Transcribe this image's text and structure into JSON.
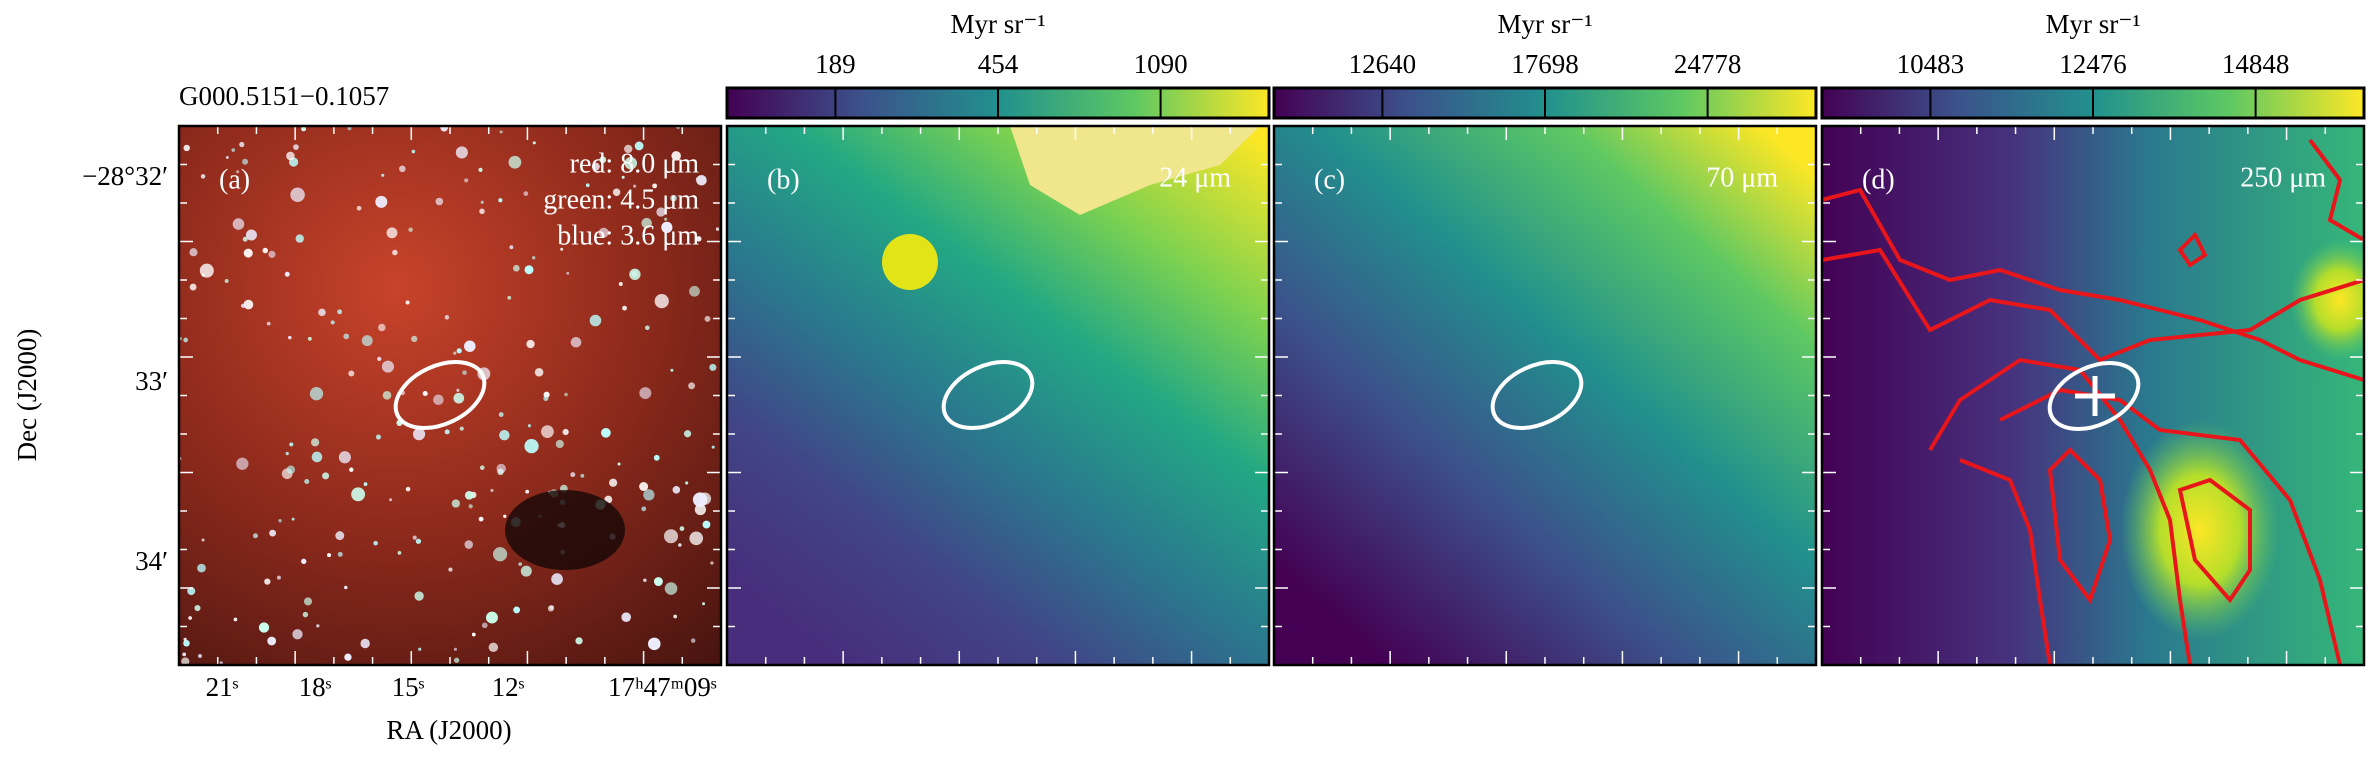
{
  "title": "G000.5151−0.1057",
  "panels": [
    {
      "label": "(a)",
      "bands": [
        "red: 8.0 μm",
        "green: 4.5 μm",
        "blue: 3.6 μm"
      ]
    },
    {
      "label": "(b)",
      "wavelength": "24 μm",
      "colorbar": {
        "unit": "Myr sr⁻¹",
        "ticks": [
          189,
          454,
          1090
        ]
      }
    },
    {
      "label": "(c)",
      "wavelength": "70 μm",
      "colorbar": {
        "unit": "Myr sr⁻¹",
        "ticks": [
          12640,
          17698,
          24778
        ]
      }
    },
    {
      "label": "(d)",
      "wavelength": "250 μm",
      "colorbar": {
        "unit": "Myr sr⁻¹",
        "ticks": [
          10483,
          12476,
          14848
        ]
      }
    }
  ],
  "axes": {
    "x_label": "RA (J2000)",
    "y_label": "Dec (J2000)",
    "x_ticks": [
      "21ˢ",
      "18ˢ",
      "15ˢ",
      "12ˢ",
      "17ʰ47ᵐ09ˢ"
    ],
    "y_ticks": [
      "−28°32′",
      "33′",
      "34′"
    ]
  }
}
